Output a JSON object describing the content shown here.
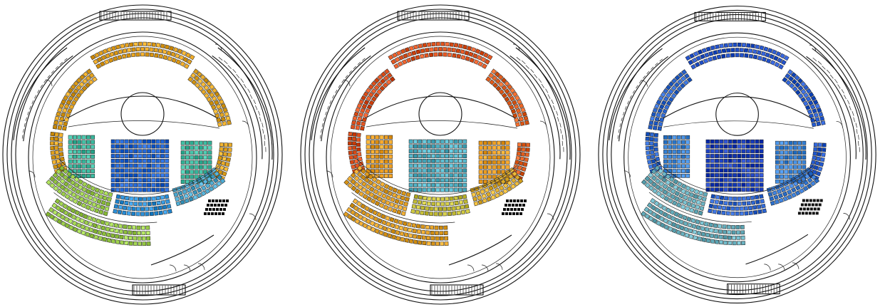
{
  "figure": {
    "panels": [
      {
        "id": "panel-1",
        "scheme": "mixed",
        "zones": {
          "balcony_top": "#e6a21e",
          "balcony_left": "#e2a11c",
          "balcony_right": "#e6a722",
          "stalls_center": "#1e64d6",
          "stalls_side": "#3fbfa4",
          "lower_left": "#9ccf4a",
          "lower_mid": "#2a8fd8",
          "lower_right": "#4aa8d0"
        }
      },
      {
        "id": "panel-2",
        "scheme": "warm",
        "zones": {
          "balcony_top": "#e2541e",
          "balcony_left": "#e04f1a",
          "balcony_right": "#e6601f",
          "stalls_center": "#4fb2c6",
          "stalls_side": "#f0a022",
          "lower_left": "#e8a427",
          "lower_mid": "#c9c23a",
          "lower_right": "#e4b12f"
        }
      },
      {
        "id": "panel-3",
        "scheme": "cool",
        "zones": {
          "balcony_top": "#1f4fc9",
          "balcony_left": "#2a66d2",
          "balcony_right": "#245ad0",
          "stalls_center": "#1a3fbf",
          "stalls_side": "#3a86db",
          "lower_left": "#6ab3c2",
          "lower_mid": "#2a62cf",
          "lower_right": "#3478d4"
        }
      }
    ]
  }
}
